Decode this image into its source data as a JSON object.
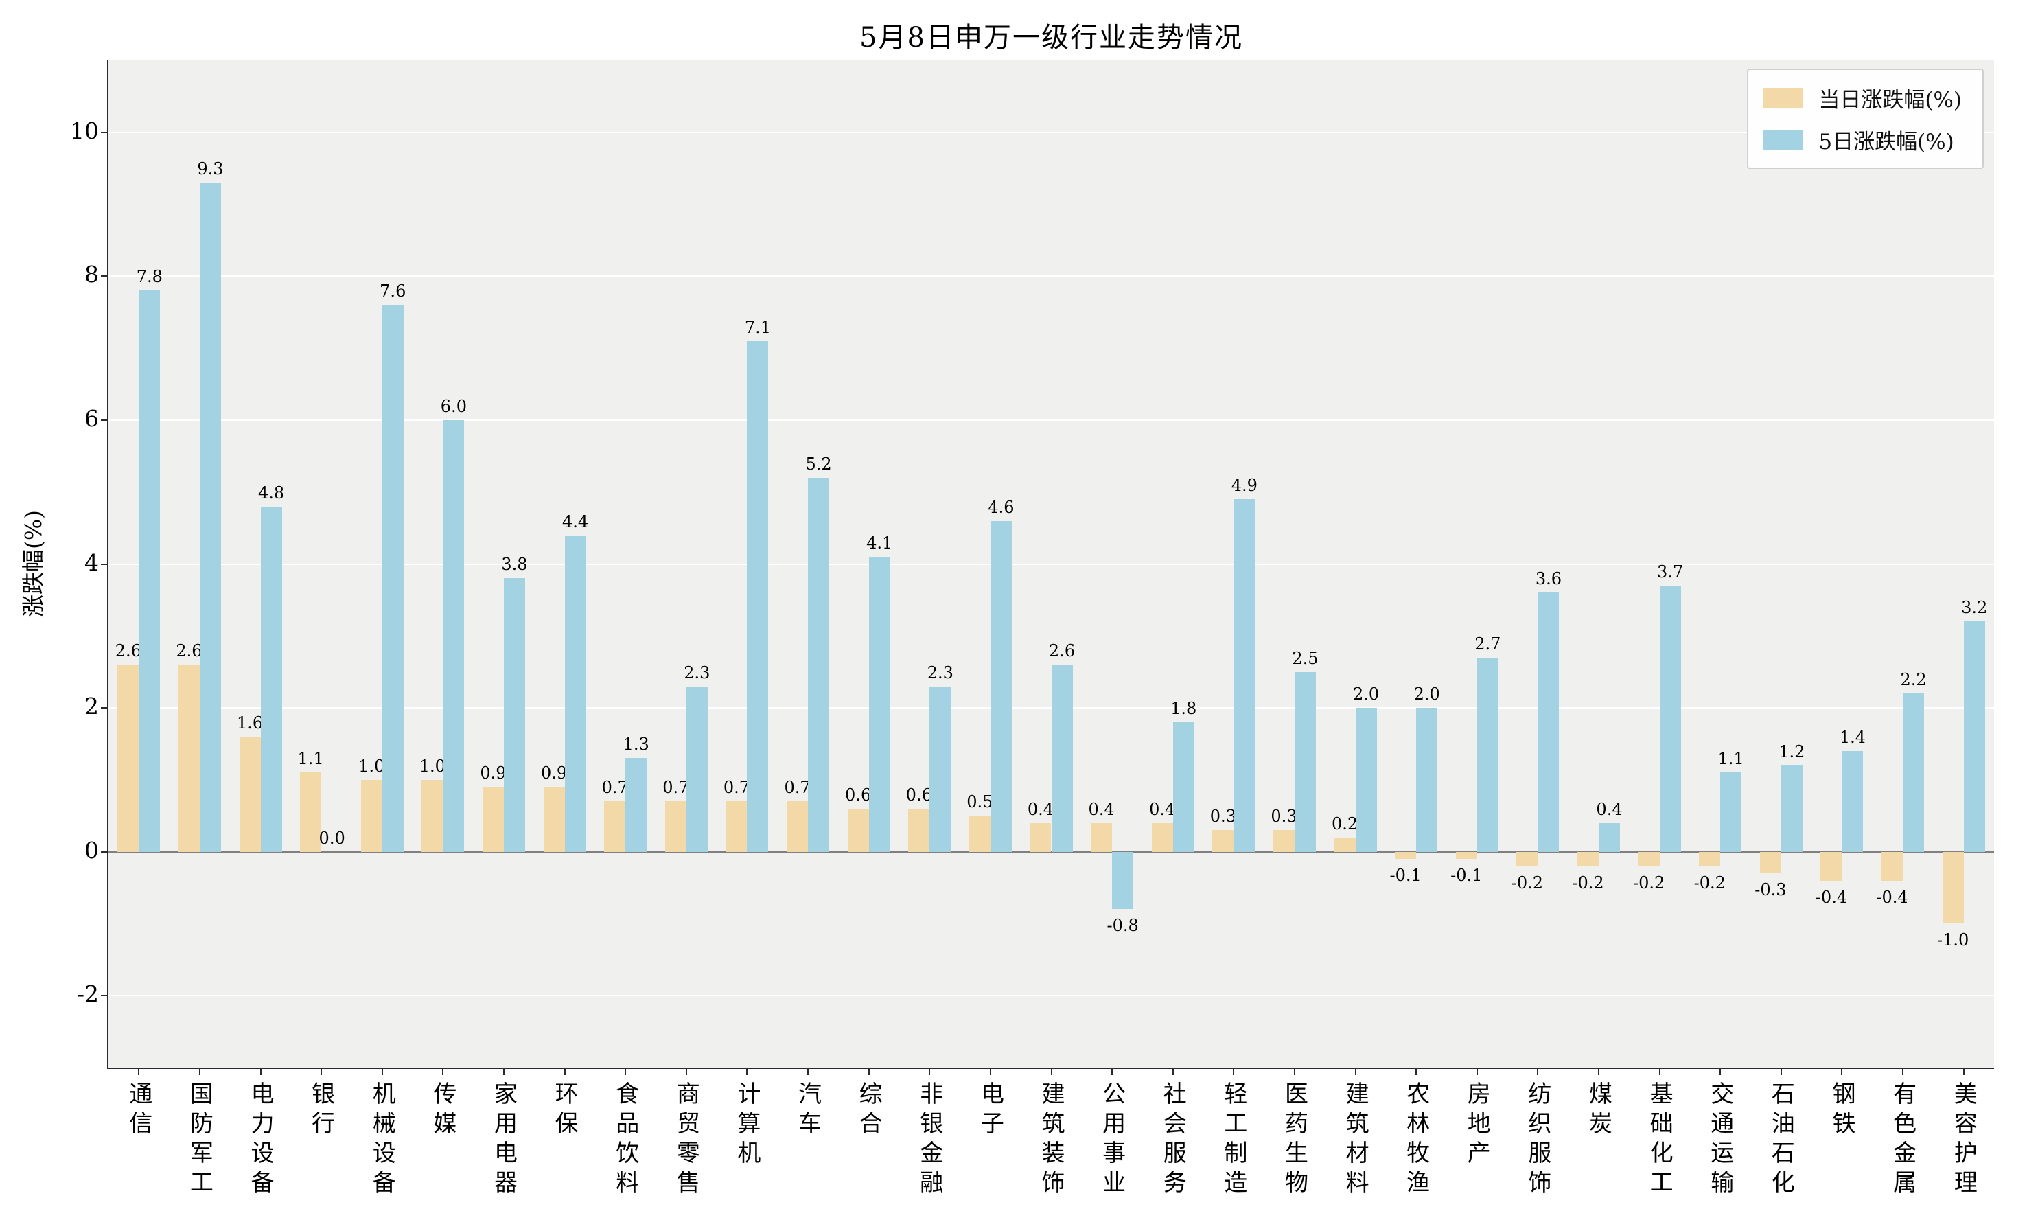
{
  "colors": {
    "daily_bar": "#f2d9a7",
    "five_day_bar": "#a3d3e3",
    "plot_background": "#f0f0ee",
    "grid_line": "#ffffff",
    "zero_line": "#7f7f7f",
    "spine": "#2b2b2b"
  },
  "chart_data": {
    "type": "bar",
    "title": "5月8日申万一级行业走势情况",
    "xlabel": "",
    "ylabel": "涨跌幅(%)",
    "ylim": [
      -3,
      11
    ],
    "yticks": [
      -2,
      0,
      2,
      4,
      6,
      8,
      10
    ],
    "grid": true,
    "legend_position": "upper right",
    "categories": [
      "通信",
      "国防军工",
      "电力设备",
      "银行",
      "机械设备",
      "传媒",
      "家用电器",
      "环保",
      "食品饮料",
      "商贸零售",
      "计算机",
      "汽车",
      "综合",
      "非银金融",
      "电子",
      "建筑装饰",
      "公用事业",
      "社会服务",
      "轻工制造",
      "医药生物",
      "建筑材料",
      "农林牧渔",
      "房地产",
      "纺织服饰",
      "煤炭",
      "基础化工",
      "交通运输",
      "石油石化",
      "钢铁",
      "有色金属",
      "美容护理"
    ],
    "series": [
      {
        "name": "当日涨跌幅(%)",
        "color": "#f2d9a7",
        "values": [
          2.6,
          2.6,
          1.6,
          1.1,
          1.0,
          1.0,
          0.9,
          0.9,
          0.7,
          0.7,
          0.7,
          0.7,
          0.6,
          0.6,
          0.5,
          0.4,
          0.4,
          0.4,
          0.3,
          0.3,
          0.2,
          -0.1,
          -0.1,
          -0.2,
          -0.2,
          -0.2,
          -0.2,
          -0.3,
          -0.4,
          -0.4,
          -1.0
        ]
      },
      {
        "name": "5日涨跌幅(%)",
        "color": "#a3d3e3",
        "values": [
          7.8,
          9.3,
          4.8,
          0.0,
          7.6,
          6.0,
          3.8,
          4.4,
          1.3,
          2.3,
          7.1,
          5.2,
          4.1,
          2.3,
          4.6,
          2.6,
          -0.8,
          1.8,
          4.9,
          2.5,
          2.0,
          2.0,
          2.7,
          3.6,
          0.4,
          3.7,
          1.1,
          1.2,
          1.4,
          2.2,
          3.2
        ]
      }
    ]
  }
}
